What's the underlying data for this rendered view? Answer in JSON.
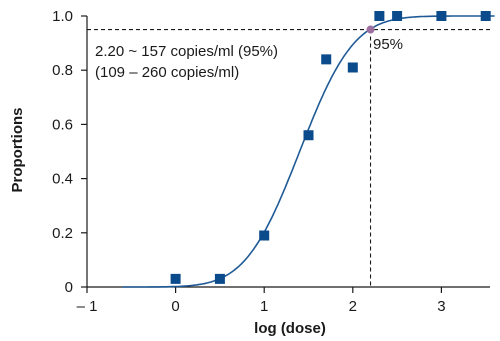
{
  "chart_data": {
    "type": "scatter",
    "title": "",
    "xlabel": "log (dose)",
    "ylabel": "Proportions",
    "xlim": [
      -1,
      3.6
    ],
    "ylim": [
      0,
      1.0
    ],
    "x_ticks": [
      -1,
      0,
      1,
      2,
      3
    ],
    "x_tick_labels": [
      "– 1",
      "0",
      "1",
      "2",
      "3"
    ],
    "y_ticks": [
      0,
      0.2,
      0.4,
      0.6,
      0.8,
      1.0
    ],
    "y_tick_labels": [
      "0",
      "0.2",
      "0.4",
      "0.6",
      "0.8",
      "1.0"
    ],
    "grid": false,
    "colors": {
      "points": "#0b4a8b",
      "curve": "#1f5a96",
      "marker_95": "#9b6fa0",
      "axes": "#1a1a1a"
    },
    "series": [
      {
        "kind": "observed",
        "x": [
          0,
          0.5,
          1.0,
          1.5,
          1.7,
          2.0,
          2.3,
          2.5,
          3.0,
          3.5
        ],
        "y": [
          0.03,
          0.03,
          0.19,
          0.56,
          0.84,
          0.81,
          1.0,
          1.0,
          1.0,
          1.0
        ]
      },
      {
        "kind": "fitted-probit",
        "center": 1.4,
        "scale": 0.48
      }
    ],
    "reference": {
      "y": 0.95,
      "x": 2.2,
      "label": "95%"
    },
    "annotations": [
      "2.20 ~ 157 copies/ml (95%)",
      "(109 – 260 copies/ml)"
    ]
  }
}
